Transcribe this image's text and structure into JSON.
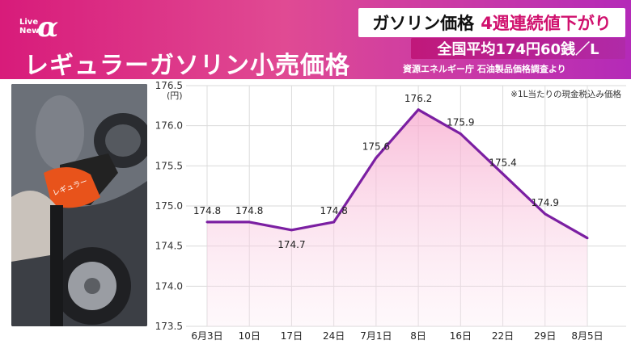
{
  "header": {
    "logo_text": "Live\nNews",
    "logo_symbol": "α",
    "title": "レギュラーガソリン小売価格",
    "headline_main": "ガソリン価格",
    "headline_accent": "4週連続値下がり",
    "average_price": "全国平均174円60銭／L",
    "source": "資源エネルギー庁 石油製品価格調査より"
  },
  "colors": {
    "banner": "#d81b7a",
    "line": "#7b1fa2",
    "accent_text": "#d0116e"
  },
  "chart_data": {
    "type": "area",
    "title": "レギュラーガソリン小売価格",
    "ylabel": "(円)",
    "xlabel": "",
    "note": "※1L当たりの現金税込み価格",
    "categories": [
      "6月3日",
      "10日",
      "17日",
      "24日",
      "7月1日",
      "8日",
      "16日",
      "22日",
      "29日",
      "8月5日"
    ],
    "series": [
      {
        "values": [
          174.8,
          174.8,
          174.7,
          174.8,
          175.6,
          176.2,
          175.9,
          175.4,
          174.9,
          174.6
        ],
        "labels": [
          "174.8",
          "174.8",
          "174.7",
          "174.8",
          "175.6",
          "176.2",
          "175.9",
          "175.4",
          "174.9",
          ""
        ]
      }
    ],
    "ylim": [
      173.5,
      176.5
    ],
    "yticks": [
      "173.5",
      "174.0",
      "174.5",
      "175.0",
      "175.5",
      "176.0",
      "176.5"
    ],
    "grid": true,
    "legend": "none"
  }
}
